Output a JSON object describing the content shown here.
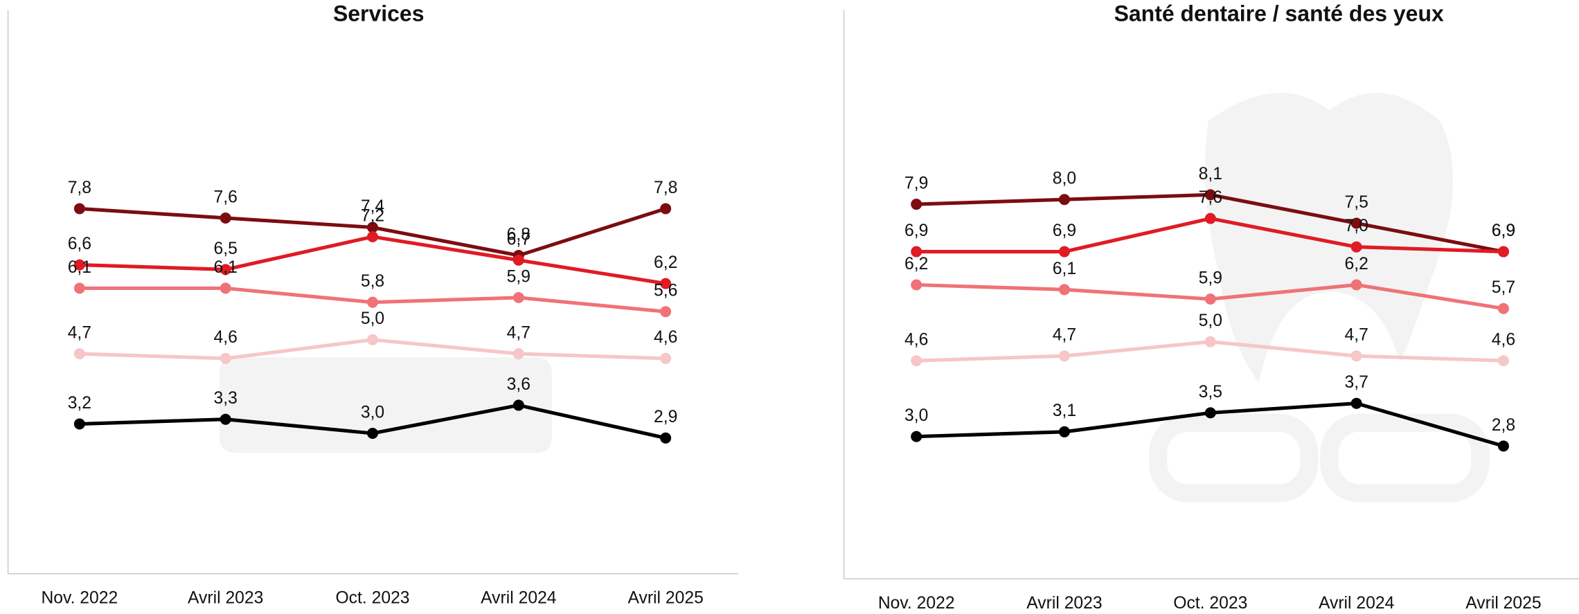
{
  "chart_data": [
    {
      "type": "line",
      "title": "Services",
      "categories": [
        "Nov. 2022",
        "Avril 2023",
        "Oct. 2023",
        "Avril 2024",
        "Avril 2025"
      ],
      "ylim": [
        0,
        10
      ],
      "series": [
        {
          "color": "#7b0d10",
          "values": [
            7.8,
            7.6,
            7.4,
            6.8,
            7.8
          ],
          "value_labels": [
            "7,8",
            "7,6",
            "7,4",
            "6,8",
            "7,8"
          ]
        },
        {
          "color": "#e01b24",
          "values": [
            6.6,
            6.5,
            7.2,
            6.7,
            6.2
          ],
          "value_labels": [
            "6,6",
            "6,5",
            "7,2",
            "6,7",
            "6,2"
          ]
        },
        {
          "color": "#ef7277",
          "values": [
            6.1,
            6.1,
            5.8,
            5.9,
            5.6
          ],
          "value_labels": [
            "6,1",
            "6,1",
            "5,8",
            "5,9",
            "5,6"
          ]
        },
        {
          "color": "#f6c6c8",
          "values": [
            4.7,
            4.6,
            5.0,
            4.7,
            4.6
          ],
          "value_labels": [
            "4,7",
            "4,6",
            "5,0",
            "4,7",
            "4,6"
          ]
        },
        {
          "color": "#000000",
          "values": [
            3.2,
            3.3,
            3.0,
            3.6,
            2.9
          ],
          "value_labels": [
            "3,2",
            "3,3",
            "3,0",
            "3,6",
            "2,9"
          ]
        }
      ]
    },
    {
      "type": "line",
      "title": "Santé dentaire / santé des yeux",
      "categories": [
        "Nov. 2022",
        "Avril 2023",
        "Oct. 2023",
        "Avril 2024",
        "Avril 2025"
      ],
      "ylim": [
        0,
        10
      ],
      "series": [
        {
          "color": "#7b0d10",
          "values": [
            7.9,
            8.0,
            8.1,
            7.5,
            6.9
          ],
          "value_labels": [
            "7,9",
            "8,0",
            "8,1",
            "7,5",
            "6,9"
          ]
        },
        {
          "color": "#e01b24",
          "values": [
            6.9,
            6.9,
            7.6,
            7.0,
            6.9
          ],
          "value_labels": [
            "6,9",
            "6,9",
            "7,6",
            "7,0",
            "6,9"
          ]
        },
        {
          "color": "#ef7277",
          "values": [
            6.2,
            6.1,
            5.9,
            6.2,
            5.7
          ],
          "value_labels": [
            "6,2",
            "6,1",
            "5,9",
            "6,2",
            "5,7"
          ]
        },
        {
          "color": "#f6c6c8",
          "values": [
            4.6,
            4.7,
            5.0,
            4.7,
            4.6
          ],
          "value_labels": [
            "4,6",
            "4,7",
            "5,0",
            "4,7",
            "4,6"
          ]
        },
        {
          "color": "#000000",
          "values": [
            3.0,
            3.1,
            3.5,
            3.7,
            2.8
          ],
          "value_labels": [
            "3,0",
            "3,1",
            "3,5",
            "3,7",
            "2,8"
          ]
        }
      ]
    }
  ]
}
